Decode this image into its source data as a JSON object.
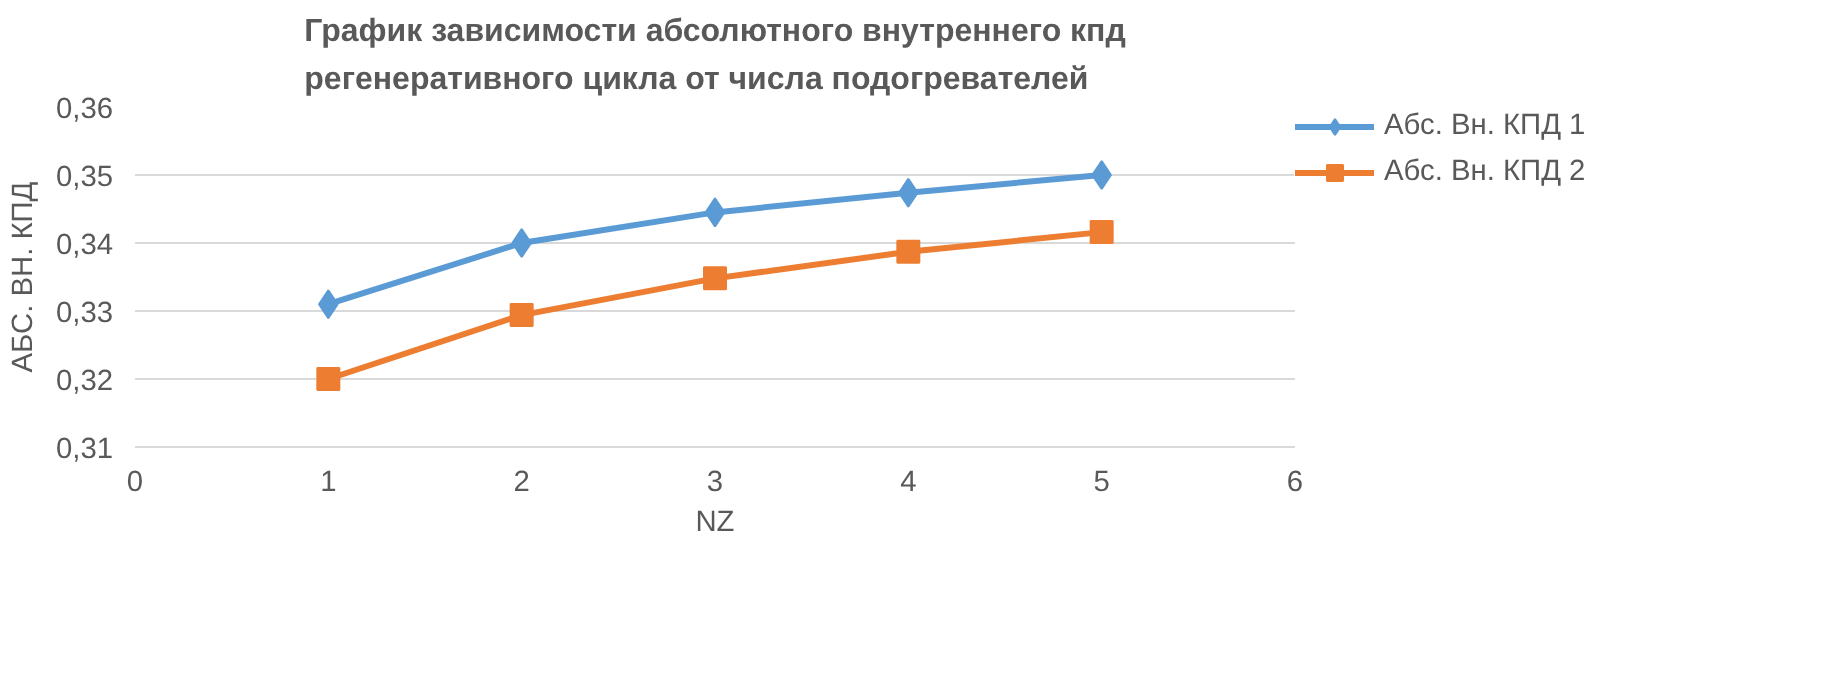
{
  "chart_data": {
    "type": "line",
    "title": "График зависимости абсолютного внутреннего кпд\nрегенеративного цикла от числа подогревателей",
    "xlabel": "NZ",
    "ylabel": "АБС. ВН. КПД",
    "x": [
      1,
      2,
      3,
      4,
      5
    ],
    "series": [
      {
        "name": "Абс. Вн. КПД 1",
        "color": "#5b9bd5",
        "marker": "diamond",
        "values": [
          0.331,
          0.34,
          0.3445,
          0.3474,
          0.35
        ]
      },
      {
        "name": "Абс. Вн. КПД 2",
        "color": "#ed7d31",
        "marker": "square",
        "values": [
          0.32,
          0.3294,
          0.3348,
          0.3387,
          0.3416
        ]
      }
    ],
    "xlim": [
      0,
      6
    ],
    "xticks": [
      0,
      1,
      2,
      3,
      4,
      5,
      6
    ],
    "ylim": [
      0.31,
      0.36
    ],
    "yticks": [
      {
        "value": 0.31,
        "label": "0,31"
      },
      {
        "value": 0.32,
        "label": "0,32"
      },
      {
        "value": 0.33,
        "label": "0,33"
      },
      {
        "value": 0.34,
        "label": "0,34"
      },
      {
        "value": 0.35,
        "label": "0,35"
      },
      {
        "value": 0.36,
        "label": "0,36"
      }
    ],
    "grid": "y",
    "legend": "right",
    "line_style": "solid"
  }
}
